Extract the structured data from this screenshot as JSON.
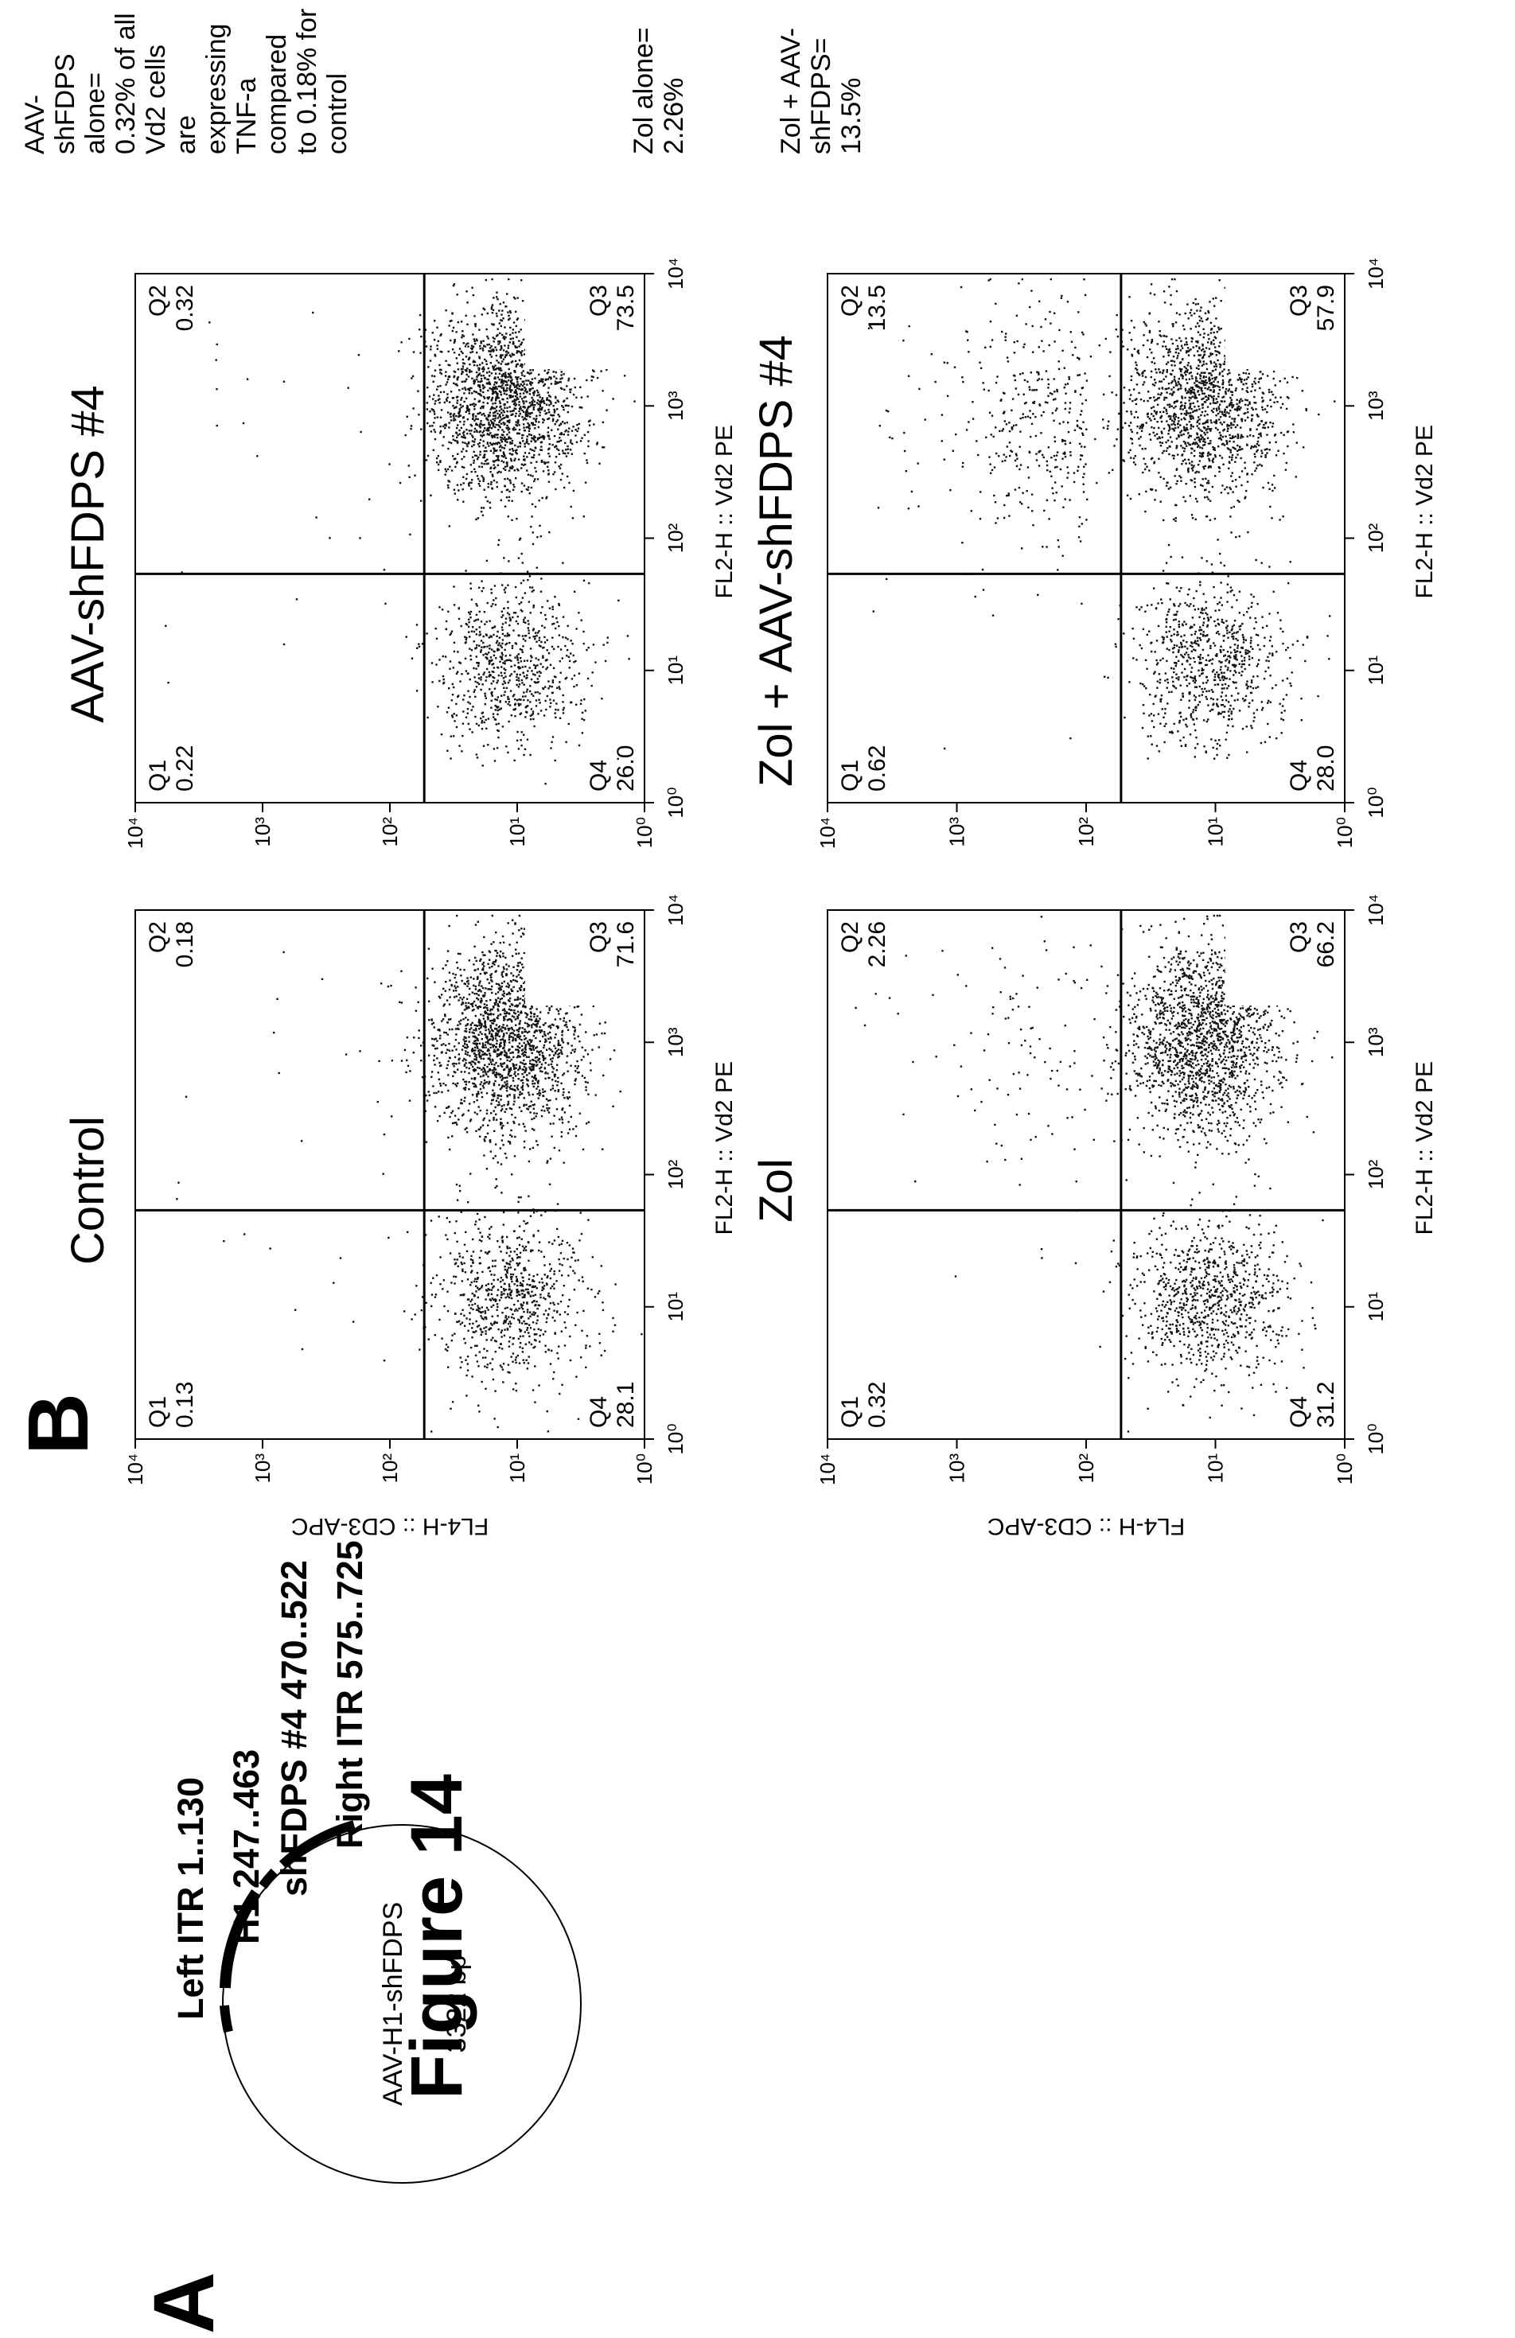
{
  "figure": {
    "title": "Figure 14"
  },
  "panel_a": {
    "letter": "A",
    "plasmid_name": "AAV-H1-shFDPS",
    "plasmid_size": "3322 bp",
    "features": [
      {
        "label": "Left ITR 1..130"
      },
      {
        "label": "H1 247..463"
      },
      {
        "label": "shFDPS #4 470..522"
      },
      {
        "label": "Right ITR 575..725"
      }
    ]
  },
  "panel_b": {
    "letter": "B",
    "y_axis_label": "FL4-H :: CD3-APC",
    "x_axis_label": "FL2-H :: Vd2 PE",
    "tick_labels": [
      "10⁰",
      "10¹",
      "10²",
      "10³",
      "10⁴"
    ],
    "plots": [
      {
        "title": "Control",
        "quadrants": {
          "Q1": "0.13",
          "Q2": "0.18",
          "Q3": "71.6",
          "Q4": "28.1"
        }
      },
      {
        "title": "AAV-shFDPS #4",
        "quadrants": {
          "Q1": "0.22",
          "Q2": "0.32",
          "Q3": "73.5",
          "Q4": "26.0"
        }
      },
      {
        "title": "Zol",
        "quadrants": {
          "Q1": "0.32",
          "Q2": "2.26",
          "Q3": "66.2",
          "Q4": "31.2"
        }
      },
      {
        "title": "Zol + AAV-shFDPS #4",
        "quadrants": {
          "Q1": "0.62",
          "Q2": "13.5",
          "Q3": "57.9",
          "Q4": "28.0"
        }
      }
    ],
    "annotation_top": [
      "AAV-",
      "shFDPS",
      "alone=",
      "0.32% of all",
      "Vd2 cells",
      "are",
      "expressing",
      "TNF-a",
      "compared",
      "to 0.18% for",
      "control"
    ],
    "annotation_bottom_1": [
      "Zol alone=",
      "2.26%"
    ],
    "annotation_bottom_2": [
      "Zol + AAV-",
      "shFDPS=",
      "13.5%"
    ]
  }
}
